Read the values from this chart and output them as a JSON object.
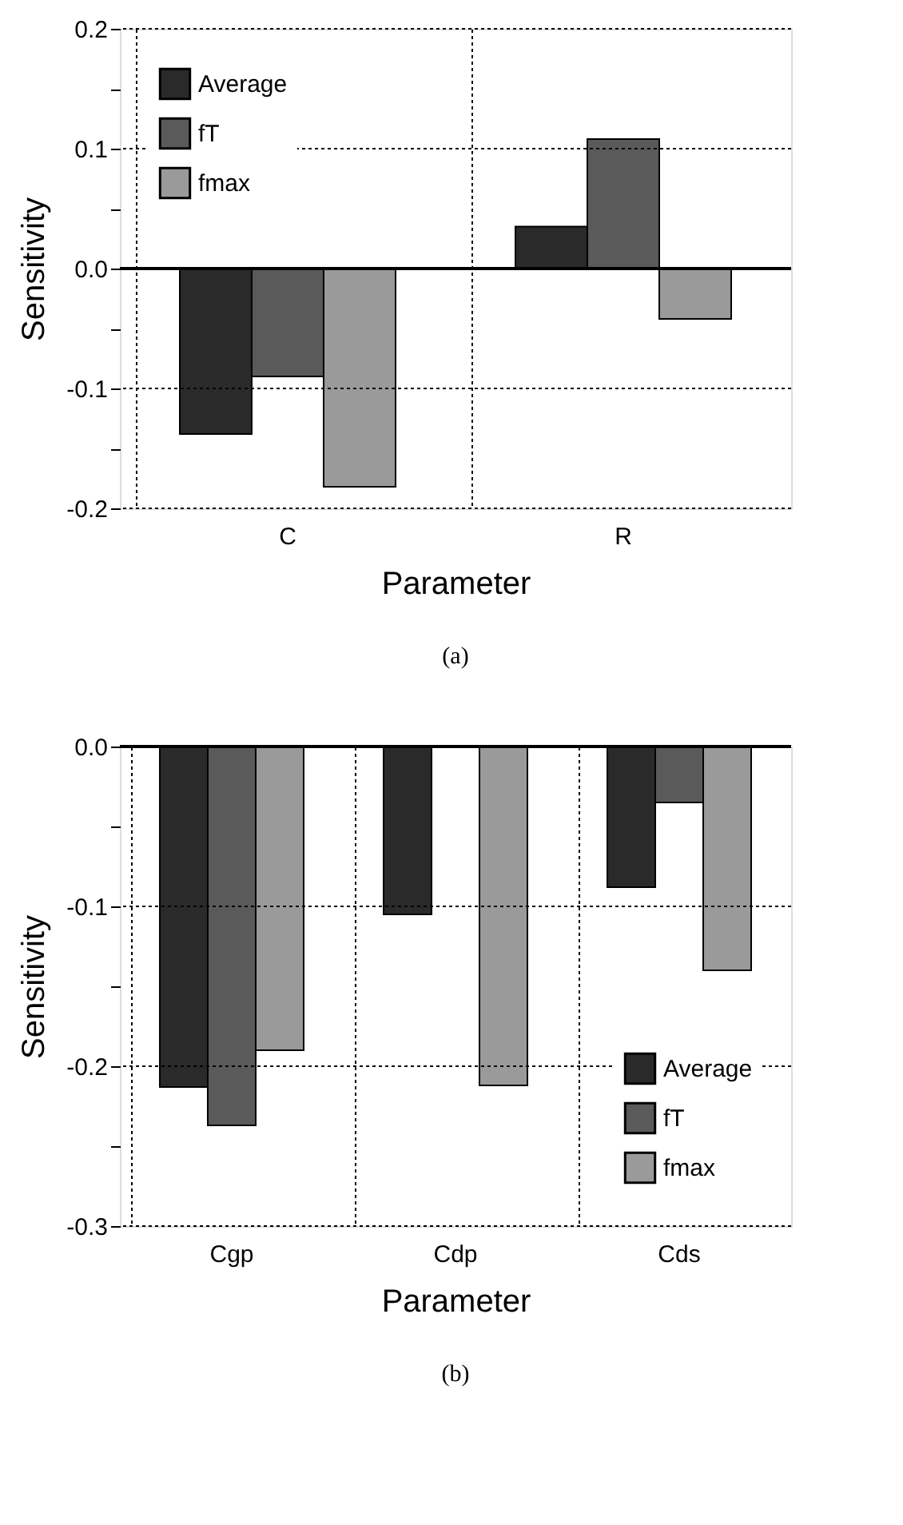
{
  "chart_data": [
    {
      "type": "bar",
      "categories": [
        "C",
        "R"
      ],
      "xlabel": "Parameter",
      "ylabel": "Sensitivity",
      "series": [
        {
          "name": "Average",
          "color": "#2a2a2a",
          "values": [
            -0.138,
            0.035
          ]
        },
        {
          "name": "fT",
          "color": "#5a5a5a",
          "values": [
            -0.09,
            0.108
          ]
        },
        {
          "name": "fmax",
          "color": "#9a9a9a",
          "values": [
            -0.182,
            -0.042
          ]
        }
      ],
      "ylim": [
        -0.2,
        0.2
      ],
      "yticks": [
        {
          "value": -0.2,
          "label": "-0.2"
        },
        {
          "value": -0.15,
          "label": null
        },
        {
          "value": -0.1,
          "label": "-0.1"
        },
        {
          "value": -0.05,
          "label": null
        },
        {
          "value": 0,
          "label": "0.0"
        },
        {
          "value": 0.05,
          "label": null
        },
        {
          "value": 0.1,
          "label": "0.1"
        },
        {
          "value": 0.15,
          "label": null
        },
        {
          "value": 0.2,
          "label": "0.2"
        }
      ],
      "grid": true,
      "legend": "top left",
      "annotations": [
        "(a)"
      ]
    },
    {
      "type": "bar",
      "categories": [
        "Cgp",
        "Cdp",
        "Cds"
      ],
      "xlabel": "Parameter",
      "ylabel": "Sensitivity",
      "series": [
        {
          "name": "Average",
          "color": "#2a2a2a",
          "values": [
            -0.213,
            -0.105,
            -0.088
          ]
        },
        {
          "name": "fT",
          "color": "#5a5a5a",
          "values": [
            -0.237,
            null,
            -0.035
          ]
        },
        {
          "name": "fmax",
          "color": "#9a9a9a",
          "values": [
            -0.19,
            -0.212,
            -0.14
          ]
        }
      ],
      "ylim": [
        -0.3,
        0
      ],
      "yticks": [
        {
          "value": -0.3,
          "label": "-0.3"
        },
        {
          "value": -0.25,
          "label": null
        },
        {
          "value": -0.2,
          "label": "-0.2"
        },
        {
          "value": -0.15,
          "label": null
        },
        {
          "value": -0.1,
          "label": "-0.1"
        },
        {
          "value": -0.05,
          "label": null
        },
        {
          "value": 0,
          "label": "0.0"
        }
      ],
      "grid": true,
      "legend": "bottom right",
      "annotations": [
        "(b)"
      ]
    }
  ]
}
